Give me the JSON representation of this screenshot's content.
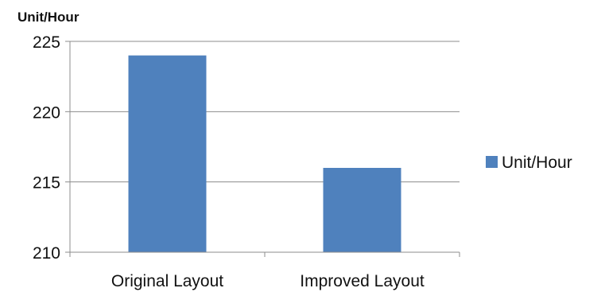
{
  "chart_data": {
    "type": "bar",
    "title": "",
    "ylabel": "Unit/Hour",
    "xlabel": "",
    "categories": [
      "Original Layout",
      "Improved Layout"
    ],
    "series": [
      {
        "name": "Unit/Hour",
        "values": [
          224,
          216
        ],
        "color": "#4f81bd"
      }
    ],
    "ylim": [
      210,
      225
    ],
    "yticks": [
      210,
      215,
      220,
      225
    ],
    "grid": true,
    "legend_position": "right"
  }
}
